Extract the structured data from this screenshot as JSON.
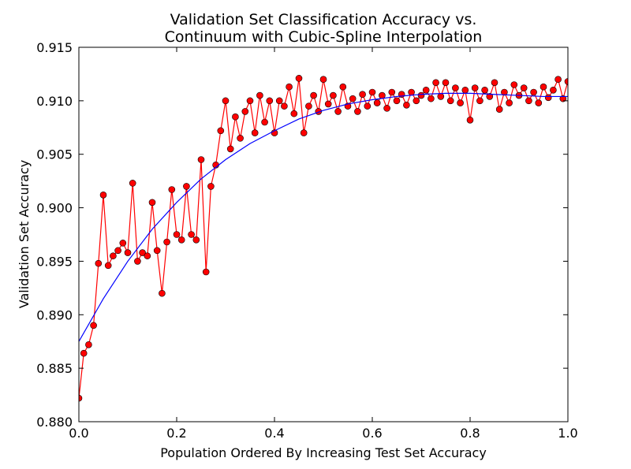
{
  "chart_data": {
    "type": "line",
    "title": [
      "Validation Set Classification Accuracy vs.",
      "Continuum with Cubic-Spline Interpolation"
    ],
    "x_label": "Population Ordered By Increasing Test Set Accuracy",
    "y_label": "Validation Set Accuracy",
    "xlim": [
      0,
      1
    ],
    "ylim": [
      0.88,
      0.915
    ],
    "xticks": [
      {
        "value": 0,
        "label": "0.0"
      },
      0.2,
      0.4,
      0.6,
      0.8,
      {
        "value": 1,
        "label": "1.0"
      }
    ],
    "yticks": [
      {
        "value": 0.88,
        "label": "0.880"
      },
      0.885,
      {
        "value": 0.89,
        "label": "0.890"
      },
      0.895,
      {
        "value": 0.9,
        "label": "0.900"
      },
      0.905,
      {
        "value": 0.91,
        "label": "0.910"
      },
      0.915
    ],
    "grid": false,
    "series": [
      {
        "color": "#ff0000",
        "marker": true,
        "x": [
          0,
          0.01,
          0.02,
          0.03,
          0.04,
          0.05,
          0.06,
          0.07,
          0.08,
          0.09,
          0.1,
          0.11,
          0.12,
          0.13,
          0.14,
          0.15,
          0.16,
          0.17,
          0.18,
          0.19,
          0.2,
          0.21,
          0.22,
          0.23,
          0.24,
          0.25,
          0.26,
          0.27,
          0.28,
          0.29,
          0.3,
          0.31,
          0.32,
          0.33,
          0.34,
          0.35,
          0.36,
          0.37,
          0.38,
          0.39,
          0.4,
          0.41,
          0.42,
          0.43,
          0.44,
          0.45,
          0.46,
          0.47,
          0.48,
          0.49,
          0.5,
          0.51,
          0.52,
          0.53,
          0.54,
          0.55,
          0.56,
          0.57,
          0.58,
          0.59,
          0.6,
          0.61,
          0.62,
          0.63,
          0.64,
          0.65,
          0.66,
          0.67,
          0.68,
          0.69,
          0.7,
          0.71,
          0.72,
          0.73,
          0.74,
          0.75,
          0.76,
          0.77,
          0.78,
          0.79,
          0.8,
          0.81,
          0.82,
          0.83,
          0.84,
          0.85,
          0.86,
          0.87,
          0.88,
          0.89,
          0.9,
          0.91,
          0.92,
          0.93,
          0.94,
          0.95,
          0.96,
          0.97,
          0.98,
          0.99,
          1
        ],
        "values": [
          0.8822,
          0.8864,
          0.8872,
          0.889,
          0.8948,
          0.9012,
          0.8946,
          0.8955,
          0.896,
          0.8967,
          0.8958,
          0.9023,
          0.895,
          0.8958,
          0.8955,
          0.9005,
          0.896,
          0.892,
          0.8968,
          0.9017,
          0.8975,
          0.897,
          0.902,
          0.8975,
          0.897,
          0.9045,
          0.894,
          0.902,
          0.904,
          0.9072,
          0.91,
          0.9055,
          0.9085,
          0.9065,
          0.909,
          0.91,
          0.907,
          0.9105,
          0.908,
          0.91,
          0.907,
          0.91,
          0.9095,
          0.9113,
          0.9088,
          0.9121,
          0.907,
          0.9095,
          0.9105,
          0.909,
          0.912,
          0.9097,
          0.9105,
          0.909,
          0.9113,
          0.9095,
          0.9102,
          0.909,
          0.9106,
          0.9095,
          0.9108,
          0.9098,
          0.9105,
          0.9093,
          0.9108,
          0.91,
          0.9106,
          0.9096,
          0.9108,
          0.91,
          0.9105,
          0.911,
          0.9102,
          0.9117,
          0.9104,
          0.9117,
          0.91,
          0.9112,
          0.9098,
          0.911,
          0.9082,
          0.9112,
          0.91,
          0.911,
          0.9104,
          0.9117,
          0.9092,
          0.9108,
          0.9098,
          0.9115,
          0.9105,
          0.9112,
          0.91,
          0.9108,
          0.9098,
          0.9113,
          0.9103,
          0.911,
          0.912,
          0.9102,
          0.9118
        ]
      },
      {
        "color": "#0000ff",
        "marker": false,
        "x": [
          0,
          0.05,
          0.1,
          0.15,
          0.2,
          0.25,
          0.3,
          0.35,
          0.4,
          0.45,
          0.5,
          0.55,
          0.6,
          0.65,
          0.7,
          0.75,
          0.8,
          0.85,
          0.9,
          0.95,
          1
        ],
        "values": [
          0.8875,
          0.8915,
          0.895,
          0.898,
          0.9005,
          0.9027,
          0.9045,
          0.906,
          0.9072,
          0.9083,
          0.9091,
          0.9097,
          0.9101,
          0.9104,
          0.9106,
          0.9107,
          0.9107,
          0.9106,
          0.9105,
          0.9104,
          0.9104
        ]
      }
    ]
  }
}
